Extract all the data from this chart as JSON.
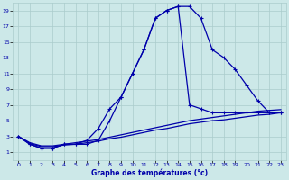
{
  "xlabel": "Graphe des températures (°c)",
  "bg_color": "#cce8e8",
  "grid_color": "#aacccc",
  "line_color": "#0000aa",
  "xlim": [
    -0.5,
    23.5
  ],
  "ylim": [
    0,
    20
  ],
  "xticks": [
    0,
    1,
    2,
    3,
    4,
    5,
    6,
    7,
    8,
    9,
    10,
    11,
    12,
    13,
    14,
    15,
    16,
    17,
    18,
    19,
    20,
    21,
    22,
    23
  ],
  "yticks": [
    1,
    3,
    5,
    7,
    9,
    11,
    13,
    15,
    17,
    19
  ],
  "line1_x": [
    0,
    1,
    2,
    3,
    4,
    5,
    6,
    7,
    8,
    9,
    10,
    11,
    12,
    13,
    14,
    15,
    16,
    17,
    18,
    19,
    20,
    21,
    22,
    23
  ],
  "line1_y": [
    3.0,
    2.0,
    1.5,
    1.5,
    2.0,
    2.0,
    2.0,
    2.5,
    5.0,
    8.0,
    11.0,
    14.0,
    18.0,
    19.0,
    19.5,
    19.5,
    18.0,
    14.0,
    13.0,
    11.5,
    9.5,
    7.5,
    6.0,
    6.0
  ],
  "line2_x": [
    0,
    1,
    2,
    3,
    4,
    5,
    6,
    7,
    8,
    9,
    10,
    11,
    12,
    13,
    14,
    15,
    16,
    17,
    18,
    19,
    20,
    21,
    22,
    23
  ],
  "line2_y": [
    3.0,
    2.0,
    1.5,
    1.5,
    2.0,
    2.0,
    2.5,
    4.0,
    6.5,
    8.0,
    11.0,
    14.0,
    18.0,
    19.0,
    19.5,
    7.0,
    6.5,
    6.0,
    6.0,
    6.0,
    6.0,
    6.0,
    6.0,
    6.0
  ],
  "line3_x": [
    0,
    1,
    2,
    3,
    4,
    5,
    6,
    7,
    8,
    9,
    10,
    11,
    12,
    13,
    14,
    15,
    16,
    17,
    18,
    19,
    20,
    21,
    22,
    23
  ],
  "line3_y": [
    3.0,
    2.2,
    1.8,
    1.8,
    2.0,
    2.2,
    2.4,
    2.6,
    2.9,
    3.2,
    3.5,
    3.8,
    4.1,
    4.4,
    4.7,
    5.0,
    5.2,
    5.4,
    5.6,
    5.8,
    6.0,
    6.2,
    6.3,
    6.4
  ],
  "line4_x": [
    0,
    1,
    2,
    3,
    4,
    5,
    6,
    7,
    8,
    9,
    10,
    11,
    12,
    13,
    14,
    15,
    16,
    17,
    18,
    19,
    20,
    21,
    22,
    23
  ],
  "line4_y": [
    3.0,
    2.1,
    1.7,
    1.7,
    1.9,
    2.0,
    2.2,
    2.4,
    2.7,
    2.9,
    3.2,
    3.5,
    3.8,
    4.0,
    4.3,
    4.6,
    4.8,
    5.0,
    5.1,
    5.3,
    5.5,
    5.7,
    5.8,
    6.0
  ]
}
